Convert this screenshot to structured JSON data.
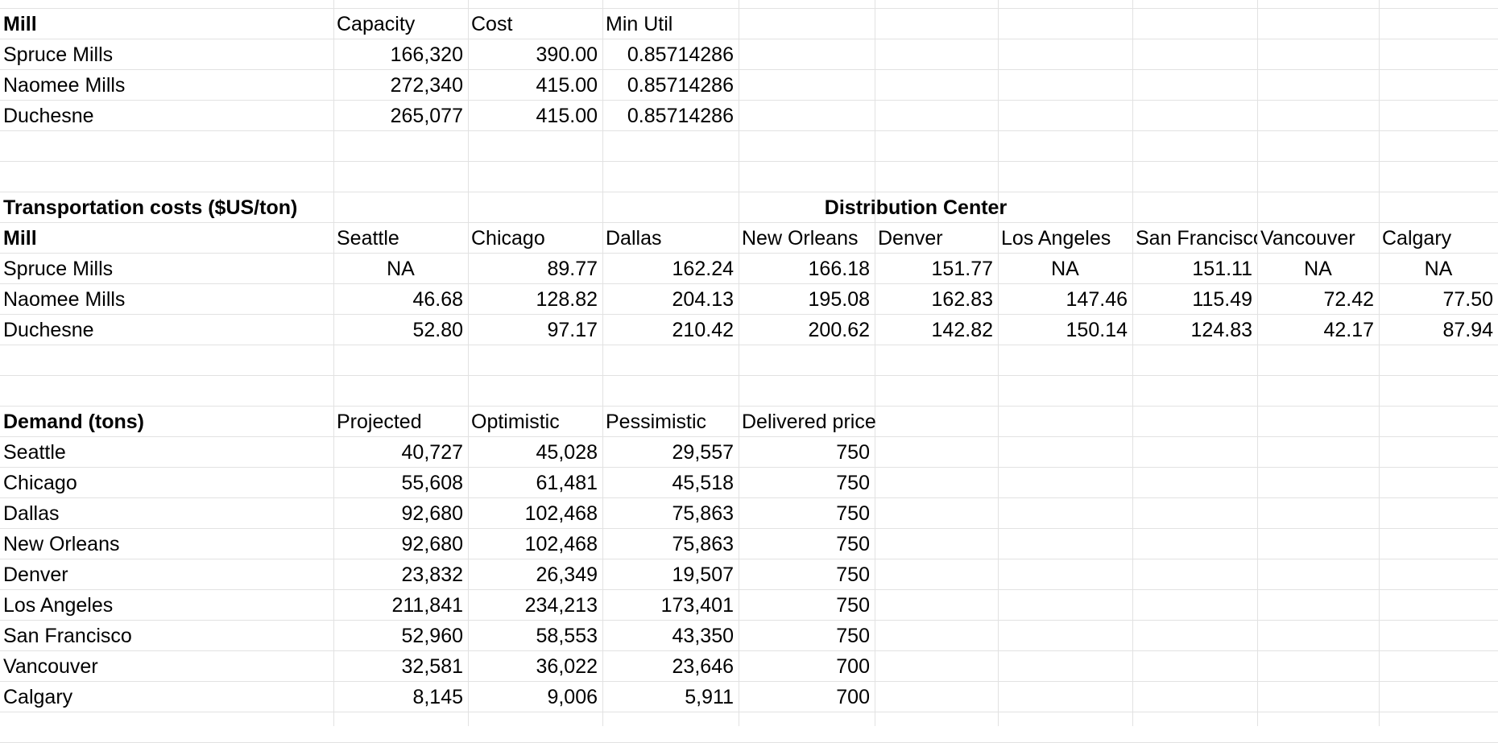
{
  "mill_table": {
    "headers": [
      "Mill",
      "Capacity",
      "Cost",
      "Min Util"
    ],
    "rows": [
      [
        "Spruce Mills",
        "166,320",
        "390.00",
        "0.85714286"
      ],
      [
        "Naomee Mills",
        "272,340",
        "415.00",
        "0.85714286"
      ],
      [
        "Duchesne",
        "265,077",
        "415.00",
        "0.85714286"
      ]
    ]
  },
  "transport_table": {
    "title": "Transportation costs ($US/ton)",
    "group_header": "Distribution Center",
    "headers": [
      "Mill",
      "Seattle",
      "Chicago",
      "Dallas",
      "New Orleans",
      "Denver",
      "Los Angeles",
      "San Francisco",
      "Vancouver",
      "Calgary"
    ],
    "rows": [
      [
        "Spruce Mills",
        "NA",
        "89.77",
        "162.24",
        "166.18",
        "151.77",
        "NA",
        "151.11",
        "NA",
        "NA"
      ],
      [
        "Naomee Mills",
        "46.68",
        "128.82",
        "204.13",
        "195.08",
        "162.83",
        "147.46",
        "115.49",
        "72.42",
        "77.50"
      ],
      [
        "Duchesne",
        "52.80",
        "97.17",
        "210.42",
        "200.62",
        "142.82",
        "150.14",
        "124.83",
        "42.17",
        "87.94"
      ]
    ]
  },
  "demand_table": {
    "headers": [
      "Demand (tons)",
      "Projected",
      "Optimistic",
      "Pessimistic",
      "Delivered price"
    ],
    "rows": [
      [
        "Seattle",
        "40,727",
        "45,028",
        "29,557",
        "750"
      ],
      [
        "Chicago",
        "55,608",
        "61,481",
        "45,518",
        "750"
      ],
      [
        "Dallas",
        "92,680",
        "102,468",
        "75,863",
        "750"
      ],
      [
        "New Orleans",
        "92,680",
        "102,468",
        "75,863",
        "750"
      ],
      [
        "Denver",
        "23,832",
        "26,349",
        "19,507",
        "750"
      ],
      [
        "Los Angeles",
        "211,841",
        "234,213",
        "173,401",
        "750"
      ],
      [
        "San Francisco",
        "52,960",
        "58,553",
        "43,350",
        "750"
      ],
      [
        "Vancouver",
        "32,581",
        "36,022",
        "23,646",
        "700"
      ],
      [
        "Calgary",
        "8,145",
        "9,006",
        "5,911",
        "700"
      ]
    ]
  }
}
